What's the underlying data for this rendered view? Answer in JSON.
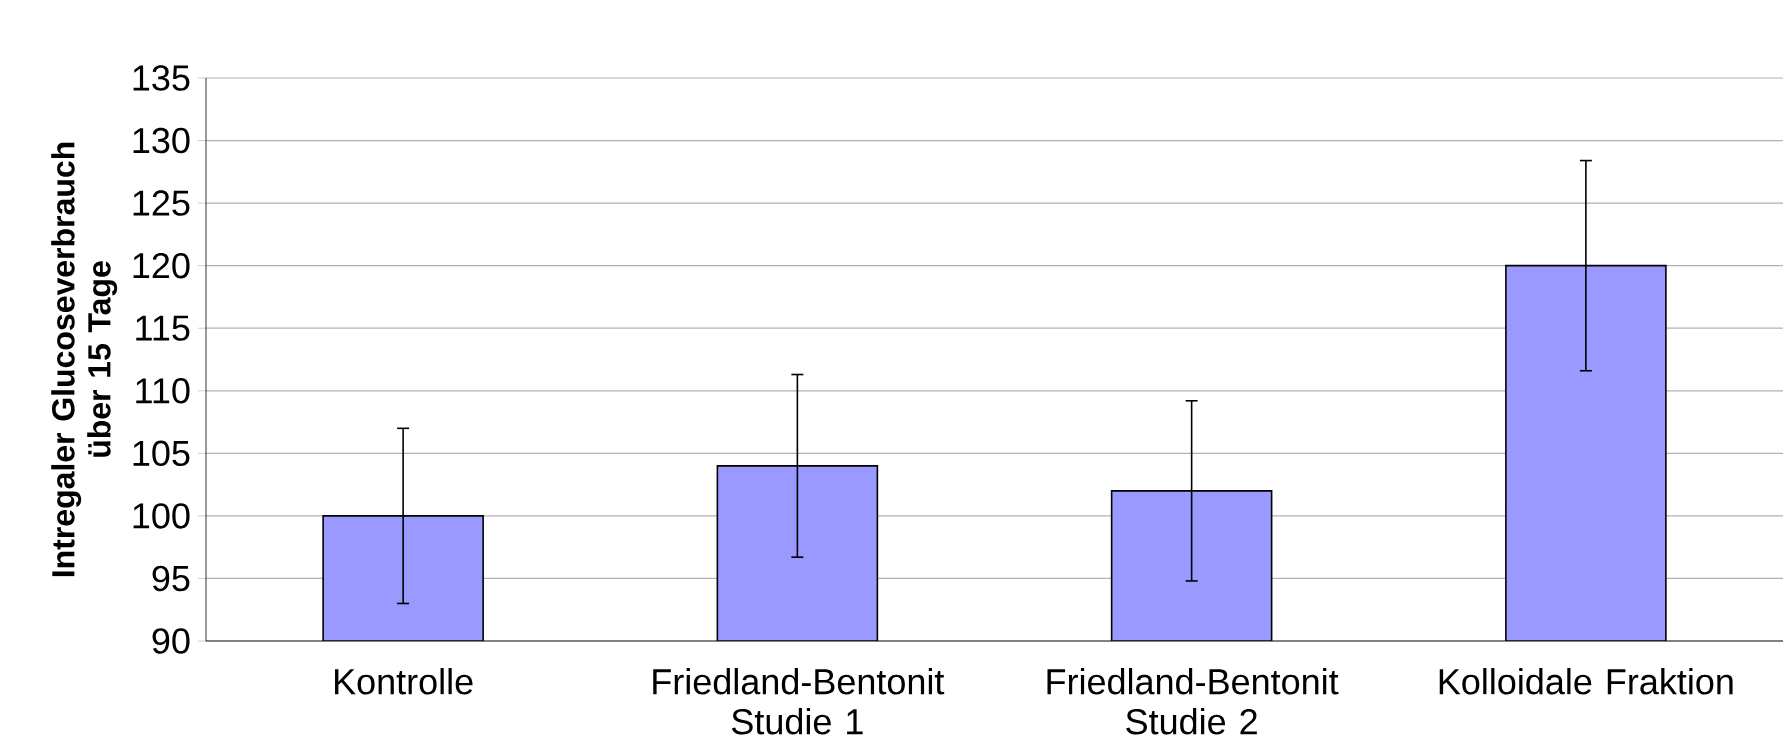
{
  "chart_data": {
    "type": "bar",
    "ylabel": "Intregaler Glucoseverbrauch über 15 Tage",
    "categories": [
      "Kontrolle",
      "Friedland-Bentonit Studie 1",
      "Friedland-Bentonit Studie 2",
      "Kolloidale Fraktion"
    ],
    "values": [
      100,
      104,
      102,
      120
    ],
    "errors": [
      7,
      7.3,
      7.2,
      8.4
    ],
    "color": "#9999ff",
    "ylim": [
      90,
      135
    ],
    "yticks": [
      90,
      95,
      100,
      105,
      110,
      115,
      120,
      125,
      130,
      135
    ],
    "grid": "y"
  }
}
